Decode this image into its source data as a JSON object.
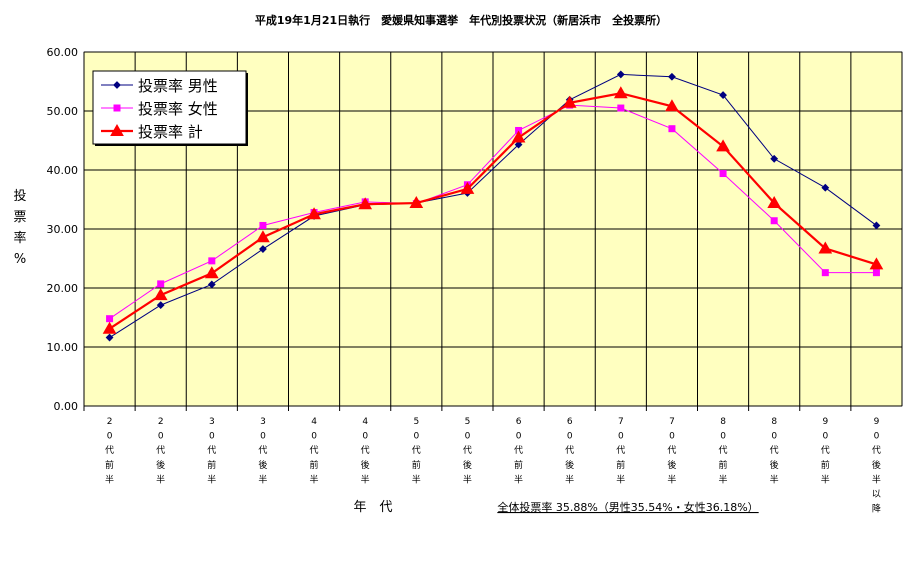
{
  "chart_data": {
    "type": "line",
    "title": "平成19年1月21日執行　愛媛県知事選挙　年代別投票状況（新居浜市　全投票所）",
    "ylabel": "投票率%",
    "xlabel": "年　代",
    "footnote": "全体投票率 35.88%（男性35.54%・女性36.18%）",
    "ylim": [
      0,
      60
    ],
    "yticks": [
      "0.00",
      "10.00",
      "20.00",
      "30.00",
      "40.00",
      "50.00",
      "60.00"
    ],
    "categories": [
      "20代前半",
      "20代後半",
      "30代前半",
      "30代後半",
      "40代前半",
      "40代後半",
      "50代前半",
      "50代後半",
      "60代前半",
      "60代後半",
      "70代前半",
      "70代後半",
      "80代前半",
      "80代後半",
      "90代前半",
      "90代後半以降"
    ],
    "series": [
      {
        "name": "投票率 男性",
        "color": "#000080",
        "marker": "diamond",
        "values": [
          11.6,
          17.1,
          20.6,
          26.6,
          32.2,
          34.1,
          34.4,
          36.1,
          44.3,
          51.9,
          56.2,
          55.8,
          52.7,
          41.9,
          37.0,
          30.6
        ]
      },
      {
        "name": "投票率 女性",
        "color": "#FF00FF",
        "marker": "square",
        "values": [
          14.8,
          20.7,
          24.6,
          30.6,
          32.8,
          34.6,
          34.3,
          37.5,
          46.7,
          51.0,
          50.5,
          47.0,
          39.4,
          31.4,
          22.6,
          22.6
        ]
      },
      {
        "name": "投票率 計",
        "color": "#FF0000",
        "marker": "triangle",
        "values": [
          13.1,
          18.8,
          22.5,
          28.6,
          32.5,
          34.2,
          34.4,
          36.8,
          45.5,
          51.4,
          53.0,
          50.8,
          44.0,
          34.4,
          26.7,
          24.0
        ]
      }
    ],
    "legend_position": "top-left",
    "grid": true
  }
}
